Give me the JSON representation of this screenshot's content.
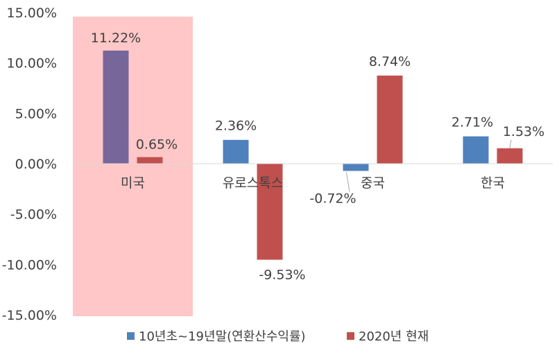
{
  "chart_data": {
    "type": "bar",
    "categories": [
      "미국",
      "유로스톡스",
      "중국",
      "한국"
    ],
    "series": [
      {
        "name": "10년초~19년말(연환산수익률)",
        "values": [
          11.22,
          2.36,
          -0.72,
          2.71
        ],
        "color": "#4f81bd"
      },
      {
        "name": "2020년 현재",
        "values": [
          0.65,
          -9.53,
          8.74,
          1.53
        ],
        "color": "#c0504d"
      }
    ],
    "data_labels": [
      [
        "11.22%",
        "2.36%",
        "-0.72%",
        "2.71%"
      ],
      [
        "0.65%",
        "-9.53%",
        "8.74%",
        "1.53%"
      ]
    ],
    "yticks": [
      "15.00%",
      "10.00%",
      "5.00%",
      "0.00%",
      "-5.00%",
      "-10.00%",
      "-15.00%"
    ],
    "ylim": [
      -15,
      15
    ],
    "highlight": {
      "category": "미국",
      "color": "#ffc7c7",
      "overlap_bar_color": "#76669a"
    },
    "grid": false,
    "legend_position": "bottom",
    "label_color": "#404040",
    "axis_color": "#d9d9d9"
  }
}
